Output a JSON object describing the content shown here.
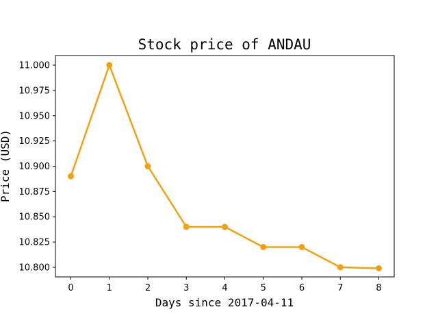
{
  "chart_data": {
    "type": "line",
    "title": "Stock price of ANDAU",
    "xlabel": "Days since 2017-04-11",
    "ylabel": "Price (USD)",
    "x": [
      0,
      1,
      2,
      3,
      4,
      5,
      6,
      7,
      8
    ],
    "series": [
      {
        "values": [
          10.89,
          11.0,
          10.9,
          10.84,
          10.84,
          10.82,
          10.82,
          10.8,
          10.799
        ],
        "color": "#f5a10f",
        "marker": "circle"
      }
    ],
    "xlim": [
      -0.4,
      8.4
    ],
    "ylim": [
      10.7905,
      11.0095
    ],
    "xticks": [
      "0",
      "1",
      "2",
      "3",
      "4",
      "5",
      "6",
      "7",
      "8"
    ],
    "yticks": [
      "10.800",
      "10.825",
      "10.850",
      "10.875",
      "10.900",
      "10.925",
      "10.950",
      "10.975",
      "11.000"
    ],
    "grid": false,
    "legend": false
  }
}
